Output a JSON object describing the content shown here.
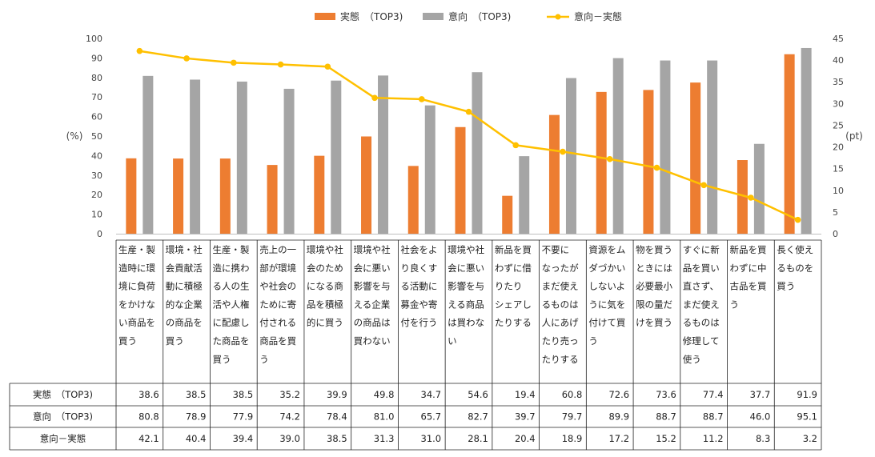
{
  "chart_data": {
    "type": "bar",
    "legend_position": "top",
    "y_left_label": "(%)",
    "y_right_label": "(pt)",
    "y_left_range": [
      0,
      100
    ],
    "y_right_range": [
      0,
      45
    ],
    "y_left_ticks": [
      "0",
      "10",
      "20",
      "30",
      "40",
      "50",
      "60",
      "70",
      "80",
      "90",
      "100"
    ],
    "y_right_ticks": [
      "0",
      "5",
      "10",
      "15",
      "20",
      "25",
      "30",
      "35",
      "40",
      "45"
    ],
    "categories": [
      "生産・製造時に環境に負荷をかけない商品を買う",
      "環境・社会貢献活動に積極的な企業の商品を買う",
      "生産・製造に携わる人の生活や人権に配慮した商品を買う",
      "売上の一部が環境や社会のために寄付される商品を買う",
      "環境や社会のためになる商品を積極的に買う",
      "環境や社会に悪い影響を与える企業の商品は買わない",
      "社会をより良くする活動に募金や寄付を行う",
      "環境や社会に悪い影響を与える商品は買わない",
      "新品を買わずに借りたりシェアしたりする",
      "不要になったがまだ使えるものは人にあげたり売ったりする",
      "資源をムダづかいしないように気を付けて買う",
      "物を買うときには必要最小限の量だけを買う",
      "すぐに新品を買い直さず、まだ使えるものは修理して使う",
      "新品を買わずに中古品を買う",
      "長く使えるものを買う"
    ],
    "category_lines": [
      [
        "生産・製",
        "造時に環",
        "境に負荷",
        "をかけな",
        "い商品を",
        "買う"
      ],
      [
        "環境・社",
        "会貢献活",
        "動に積極",
        "的な企業",
        "の商品を",
        "買う"
      ],
      [
        "生産・製",
        "造に携わ",
        "る人の生",
        "活や人権",
        "に配慮し",
        "た商品を",
        "買う"
      ],
      [
        "売上の一",
        "部が環境",
        "や社会の",
        "ために寄",
        "付される",
        "商品を買",
        "う"
      ],
      [
        "環境や社",
        "会のため",
        "になる商",
        "品を積極",
        "的に買う"
      ],
      [
        "環境や社",
        "会に悪い",
        "影響を与",
        "える企業",
        "の商品は",
        "買わない"
      ],
      [
        "社会をよ",
        "り良くす",
        "る活動に",
        "募金や寄",
        "付を行う"
      ],
      [
        "環境や社",
        "会に悪い",
        "影響を与",
        "える商品",
        "は買わな",
        "い"
      ],
      [
        "新品を買",
        "わずに借",
        "りたり",
        "シェアし",
        "たりする"
      ],
      [
        "不要に",
        "なったが",
        "まだ使え",
        "るものは",
        "人にあげ",
        "たり売っ",
        "たりする"
      ],
      [
        "資源をム",
        "ダづかい",
        "しないよ",
        "うに気を",
        "付けて買",
        "う"
      ],
      [
        "物を買う",
        "ときには",
        "必要最小",
        "限の量だ",
        "けを買う"
      ],
      [
        "すぐに新",
        "品を買い",
        "直さず、",
        "まだ使え",
        "るものは",
        "修理して",
        "使う"
      ],
      [
        "新品を買",
        "わずに中",
        "古品を買",
        "う"
      ],
      [
        "長く使え",
        "るものを",
        "買う"
      ]
    ],
    "series": [
      {
        "name": "実態　（TOP3)",
        "kind": "bar",
        "axis": "left",
        "color": "#ED7D31",
        "values": [
          38.6,
          38.5,
          38.5,
          35.2,
          39.9,
          49.8,
          34.7,
          54.6,
          19.4,
          60.8,
          72.6,
          73.6,
          77.4,
          37.7,
          91.9
        ],
        "labels": [
          "38.6",
          "38.5",
          "38.5",
          "35.2",
          "39.9",
          "49.8",
          "34.7",
          "54.6",
          "19.4",
          "60.8",
          "72.6",
          "73.6",
          "77.4",
          "37.7",
          "91.9"
        ]
      },
      {
        "name": "意向　（TOP3)",
        "kind": "bar",
        "axis": "left",
        "color": "#A5A5A5",
        "values": [
          80.8,
          78.9,
          77.9,
          74.2,
          78.4,
          81.0,
          65.7,
          82.7,
          39.7,
          79.7,
          89.9,
          88.7,
          88.7,
          46.0,
          95.1
        ],
        "labels": [
          "80.8",
          "78.9",
          "77.9",
          "74.2",
          "78.4",
          "81.0",
          "65.7",
          "82.7",
          "39.7",
          "79.7",
          "89.9",
          "88.7",
          "88.7",
          "46.0",
          "95.1"
        ]
      },
      {
        "name": "意向－実態",
        "kind": "line",
        "axis": "right",
        "color": "#FFC000",
        "values": [
          42.1,
          40.4,
          39.4,
          39.0,
          38.5,
          31.3,
          31.0,
          28.1,
          20.4,
          18.9,
          17.2,
          15.2,
          11.2,
          8.3,
          3.2
        ],
        "labels": [
          "42.1",
          "40.4",
          "39.4",
          "39.0",
          "38.5",
          "31.3",
          "31.0",
          "28.1",
          "20.4",
          "18.9",
          "17.2",
          "15.2",
          "11.2",
          "8.3",
          "3.2"
        ]
      }
    ],
    "table_row_labels": [
      "実態　（TOP3)",
      "意向　（TOP3)",
      "意向－実態"
    ]
  }
}
